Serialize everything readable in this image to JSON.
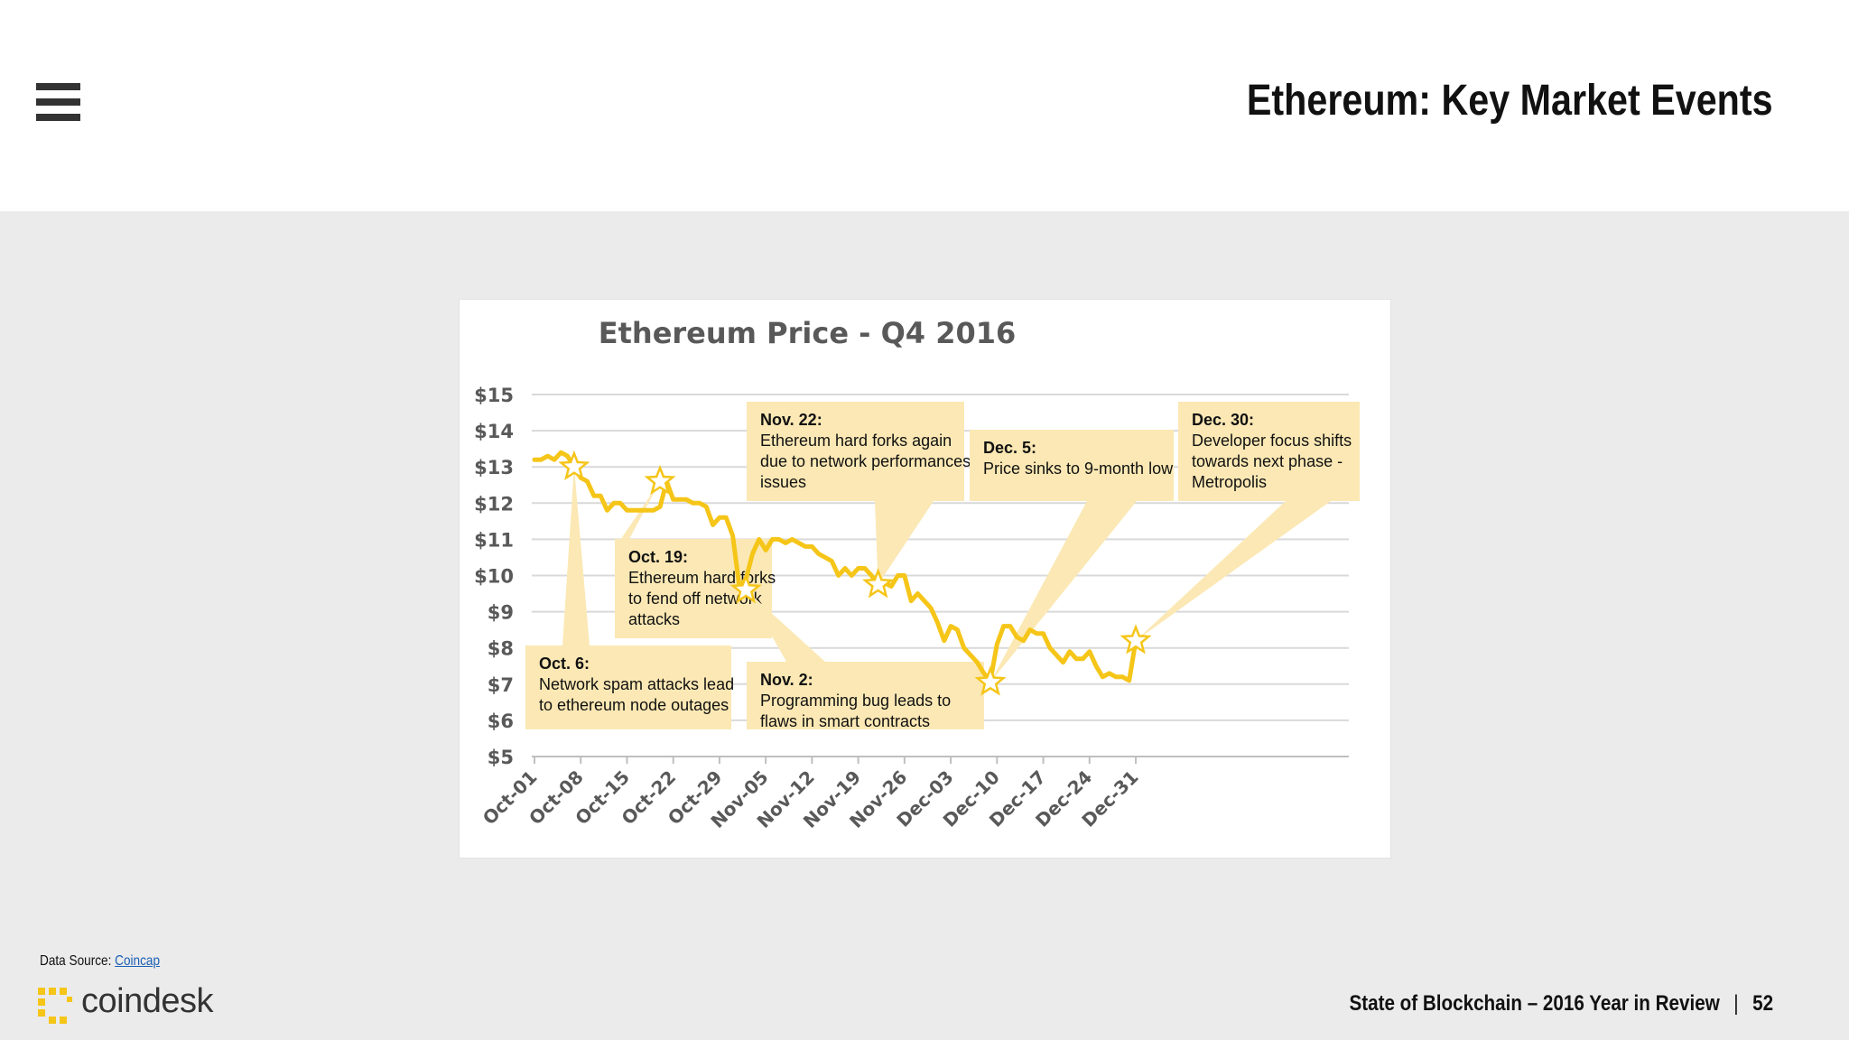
{
  "header": {
    "title": "Ethereum: Key Market Events",
    "menu_icon": "hamburger-menu-icon"
  },
  "chart_data": {
    "type": "line",
    "title": "Ethereum Price - Q4 2016",
    "xlabel": "",
    "ylabel": "",
    "ylim": [
      5,
      15
    ],
    "y_ticks": [
      "$15",
      "$14",
      "$13",
      "$12",
      "$11",
      "$10",
      "$9",
      "$8",
      "$7",
      "$6",
      "$5"
    ],
    "x_ticks": [
      "Oct-01",
      "Oct-08",
      "Oct-15",
      "Oct-22",
      "Oct-29",
      "Nov-05",
      "Nov-12",
      "Nov-19",
      "Nov-26",
      "Dec-03",
      "Dec-10",
      "Dec-17",
      "Dec-24",
      "Dec-31"
    ],
    "grid": true,
    "line_color": "#f5c518",
    "series": [
      {
        "x": [
          0,
          1,
          2,
          3,
          4,
          5,
          6,
          7,
          8,
          9,
          10,
          11,
          12,
          13,
          14,
          15,
          16,
          17,
          18,
          19,
          20,
          21,
          22,
          23,
          24,
          25,
          26,
          27,
          28,
          29,
          30,
          31,
          32,
          33,
          34,
          35,
          36,
          37,
          38,
          39,
          40,
          41,
          42,
          43,
          44,
          45,
          46,
          47,
          48,
          49,
          50,
          51,
          52,
          53,
          54,
          55,
          56,
          57,
          58,
          59,
          60,
          61,
          62,
          63,
          64,
          65,
          66,
          67,
          68,
          69,
          70,
          71,
          72,
          73,
          74,
          75,
          76,
          77,
          78,
          79,
          80,
          81,
          82,
          83,
          84,
          85,
          86,
          87,
          88,
          89,
          90,
          91
        ],
        "values": [
          13.2,
          13.2,
          13.3,
          13.2,
          13.4,
          13.3,
          13.0,
          12.7,
          12.6,
          12.2,
          12.2,
          11.8,
          12.0,
          12.0,
          11.8,
          11.8,
          11.8,
          11.8,
          11.8,
          11.9,
          12.6,
          12.1,
          12.1,
          12.1,
          12.0,
          12.0,
          11.9,
          11.4,
          11.6,
          11.6,
          11.1,
          9.7,
          9.9,
          10.6,
          11.0,
          10.7,
          11.0,
          11.0,
          10.9,
          11.0,
          10.9,
          10.8,
          10.8,
          10.6,
          10.5,
          10.4,
          10.0,
          10.2,
          10.0,
          10.2,
          10.2,
          10.0,
          9.7,
          9.8,
          9.7,
          10.0,
          10.0,
          9.3,
          9.5,
          9.3,
          9.1,
          8.7,
          8.2,
          8.6,
          8.5,
          8.0,
          7.8,
          7.6,
          7.3,
          7.1,
          8.1,
          8.6,
          8.6,
          8.3,
          8.2,
          8.5,
          8.4,
          8.4,
          8.0,
          7.8,
          7.6,
          7.9,
          7.7,
          7.7,
          7.9,
          7.5,
          7.2,
          7.3,
          7.2,
          7.2,
          7.1,
          8.2
        ]
      }
    ],
    "events": [
      {
        "date": "Oct. 6:",
        "text": [
          "Network spam attacks lead",
          "to ethereum node outages"
        ],
        "day": 6,
        "value": 13.0
      },
      {
        "date": "Oct. 19:",
        "text": [
          "Ethereum hard forks",
          "to fend off network",
          "attacks"
        ],
        "day": 19,
        "value": 12.6
      },
      {
        "date": "Nov. 2:",
        "text": [
          "Programming bug leads to",
          "flaws in smart contracts"
        ],
        "day": 32,
        "value": 9.6
      },
      {
        "date": "Nov. 22:",
        "text": [
          "Ethereum hard forks again",
          "due to network performances",
          "issues"
        ],
        "day": 52,
        "value": 9.75
      },
      {
        "date": "Dec. 5:",
        "text": [
          "Price sinks to 9-month low"
        ],
        "day": 69,
        "value": 7.05
      },
      {
        "date": "Dec. 30:",
        "text": [
          "Developer focus shifts",
          "towards next phase -",
          "Metropolis"
        ],
        "day": 91,
        "value": 8.2
      }
    ]
  },
  "footer": {
    "source_label": "Data Source: ",
    "source_link": "Coincap",
    "logo_text": "coindesk",
    "report_title": "State of Blockchain – 2016 Year in Review",
    "separator": "|",
    "page_number": "52"
  }
}
